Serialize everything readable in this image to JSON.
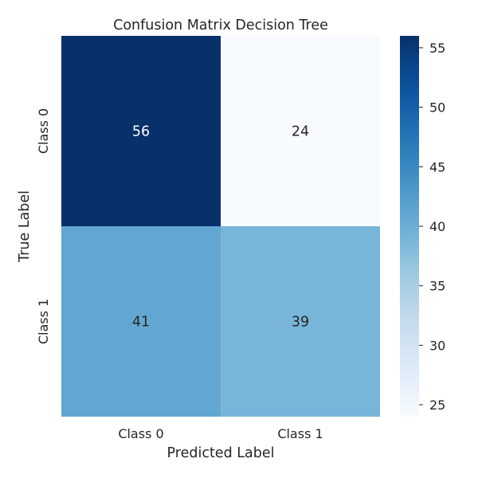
{
  "chart_data": {
    "type": "heatmap",
    "title": "Confusion Matrix Decision Tree",
    "xlabel": "Predicted Label",
    "ylabel": "True Label",
    "x_categories": [
      "Class 0",
      "Class 1"
    ],
    "y_categories": [
      "Class 0",
      "Class 1"
    ],
    "values": [
      [
        56,
        24
      ],
      [
        41,
        39
      ]
    ],
    "colorscale": "Blues",
    "colorbar": {
      "min": 24,
      "max": 56,
      "ticks": [
        25,
        30,
        35,
        40,
        45,
        50,
        55
      ]
    },
    "grid": false,
    "legend": "colorbar-right"
  }
}
